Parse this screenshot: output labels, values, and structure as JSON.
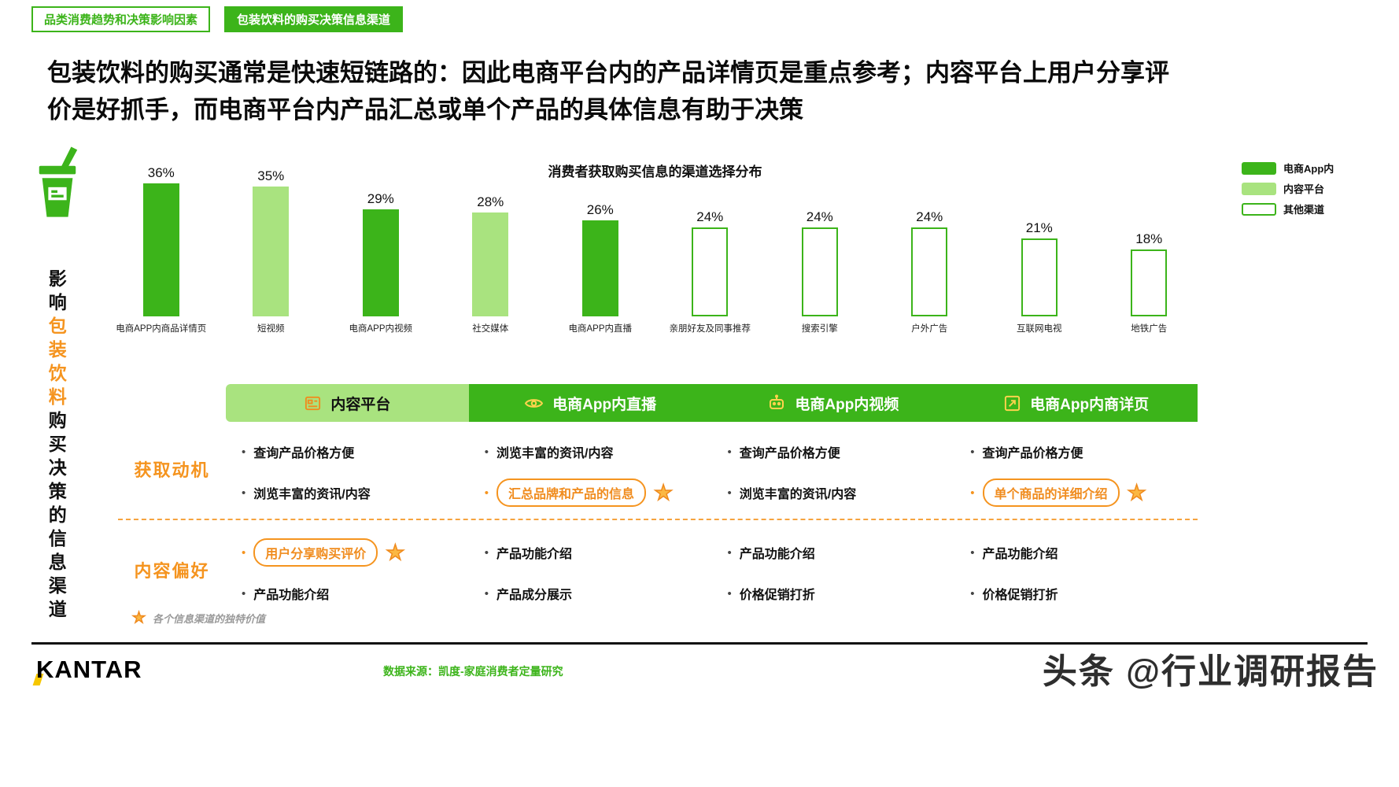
{
  "colors": {
    "green": "#3cb41a",
    "green_light": "#a9e37f",
    "orange": "#f5941f",
    "star_fill": "#fbb843",
    "kantar_yellow": "#f6c700"
  },
  "tabs": [
    {
      "label": "品类消费趋势和决策影响因素",
      "active": false
    },
    {
      "label": "包装饮料的购买决策信息渠道",
      "active": true
    }
  ],
  "title": "包装饮料的购买通常是快速短链路的：因此电商平台内的产品详情页是重点参考；内容平台上用户分享评价是好抓手，而电商平台内产品汇总或单个产品的具体信息有助于决策",
  "side_label": {
    "part1": "影响",
    "part2": "包装饮料",
    "part3": "购买决策的信息渠道"
  },
  "chart_data": {
    "type": "bar",
    "title": "消费者获取购买信息的渠道选择分布",
    "categories": [
      "电商APP内商品详情页",
      "短视频",
      "电商APP内视频",
      "社交媒体",
      "电商APP内直播",
      "亲朋好友及同事推荐",
      "搜索引擎",
      "户外广告",
      "互联网电视",
      "地铁广告"
    ],
    "values": [
      36,
      35,
      29,
      28,
      26,
      24,
      24,
      24,
      21,
      18
    ],
    "value_suffix": "%",
    "series_type": [
      "ecommerce",
      "content",
      "ecommerce",
      "content",
      "ecommerce",
      "other",
      "other",
      "other",
      "other",
      "other"
    ],
    "legend": [
      {
        "label": "电商App内",
        "type": "ecommerce"
      },
      {
        "label": "内容平台",
        "type": "content"
      },
      {
        "label": "其他渠道",
        "type": "other"
      }
    ],
    "legend_position": "top-right",
    "grid": false,
    "ylim": [
      0,
      40
    ],
    "xlabel": "",
    "ylabel": ""
  },
  "table": {
    "columns": [
      {
        "header": "内容平台",
        "icon": "content-platform-icon",
        "style": "light"
      },
      {
        "header": "电商App内直播",
        "icon": "live-eye-icon",
        "style": "dark"
      },
      {
        "header": "电商App内视频",
        "icon": "video-robot-icon",
        "style": "dark"
      },
      {
        "header": "电商App内商详页",
        "icon": "expand-detail-icon",
        "style": "dark"
      }
    ],
    "rows": [
      {
        "label": "获取动机",
        "cells": [
          [
            {
              "text": "查询产品价格方便"
            },
            {
              "text": "浏览丰富的资讯/内容"
            }
          ],
          [
            {
              "text": "浏览丰富的资讯/内容"
            },
            {
              "text": "汇总品牌和产品的信息",
              "highlight": true
            }
          ],
          [
            {
              "text": "查询产品价格方便"
            },
            {
              "text": "浏览丰富的资讯/内容"
            }
          ],
          [
            {
              "text": "查询产品价格方便"
            },
            {
              "text": "单个商品的详细介绍",
              "highlight": true
            }
          ]
        ]
      },
      {
        "label": "内容偏好",
        "cells": [
          [
            {
              "text": "用户分享购买评价",
              "highlight": true
            },
            {
              "text": "产品功能介绍"
            }
          ],
          [
            {
              "text": "产品功能介绍"
            },
            {
              "text": "产品成分展示"
            }
          ],
          [
            {
              "text": "产品功能介绍"
            },
            {
              "text": "价格促销打折"
            }
          ],
          [
            {
              "text": "产品功能介绍"
            },
            {
              "text": "价格促销打折"
            }
          ]
        ]
      }
    ],
    "footnote": "各个信息渠道的独特价值"
  },
  "footer": {
    "logo": "KANTAR",
    "source": "数据来源：凯度-家庭消费者定量研究",
    "watermark": "头条 @行业调研报告"
  }
}
